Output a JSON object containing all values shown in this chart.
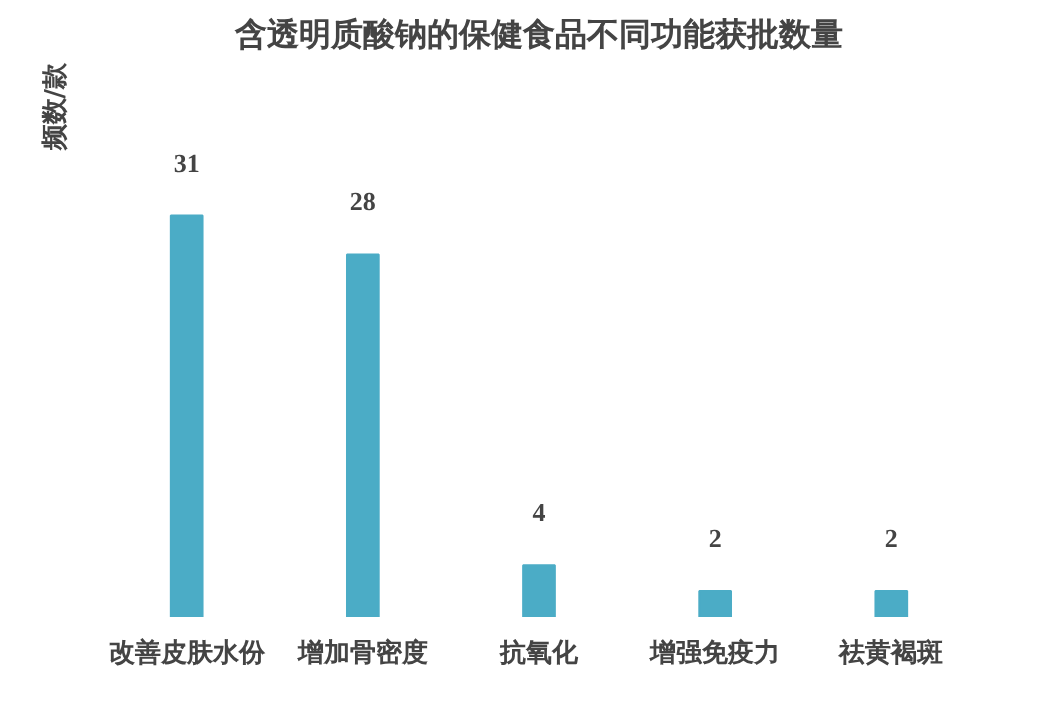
{
  "chart_data": {
    "type": "bar",
    "title": "含透明质酸钠的保健食品不同功能获批数量",
    "ylabel": "频数/款",
    "categories": [
      "改善皮肤水份",
      "增加骨密度",
      "抗氧化",
      "增强免疫力",
      "祛黄褐斑"
    ],
    "values": [
      31,
      28,
      4,
      2,
      2
    ],
    "color": "#4bacc6",
    "data_labels": true,
    "grid": false
  }
}
